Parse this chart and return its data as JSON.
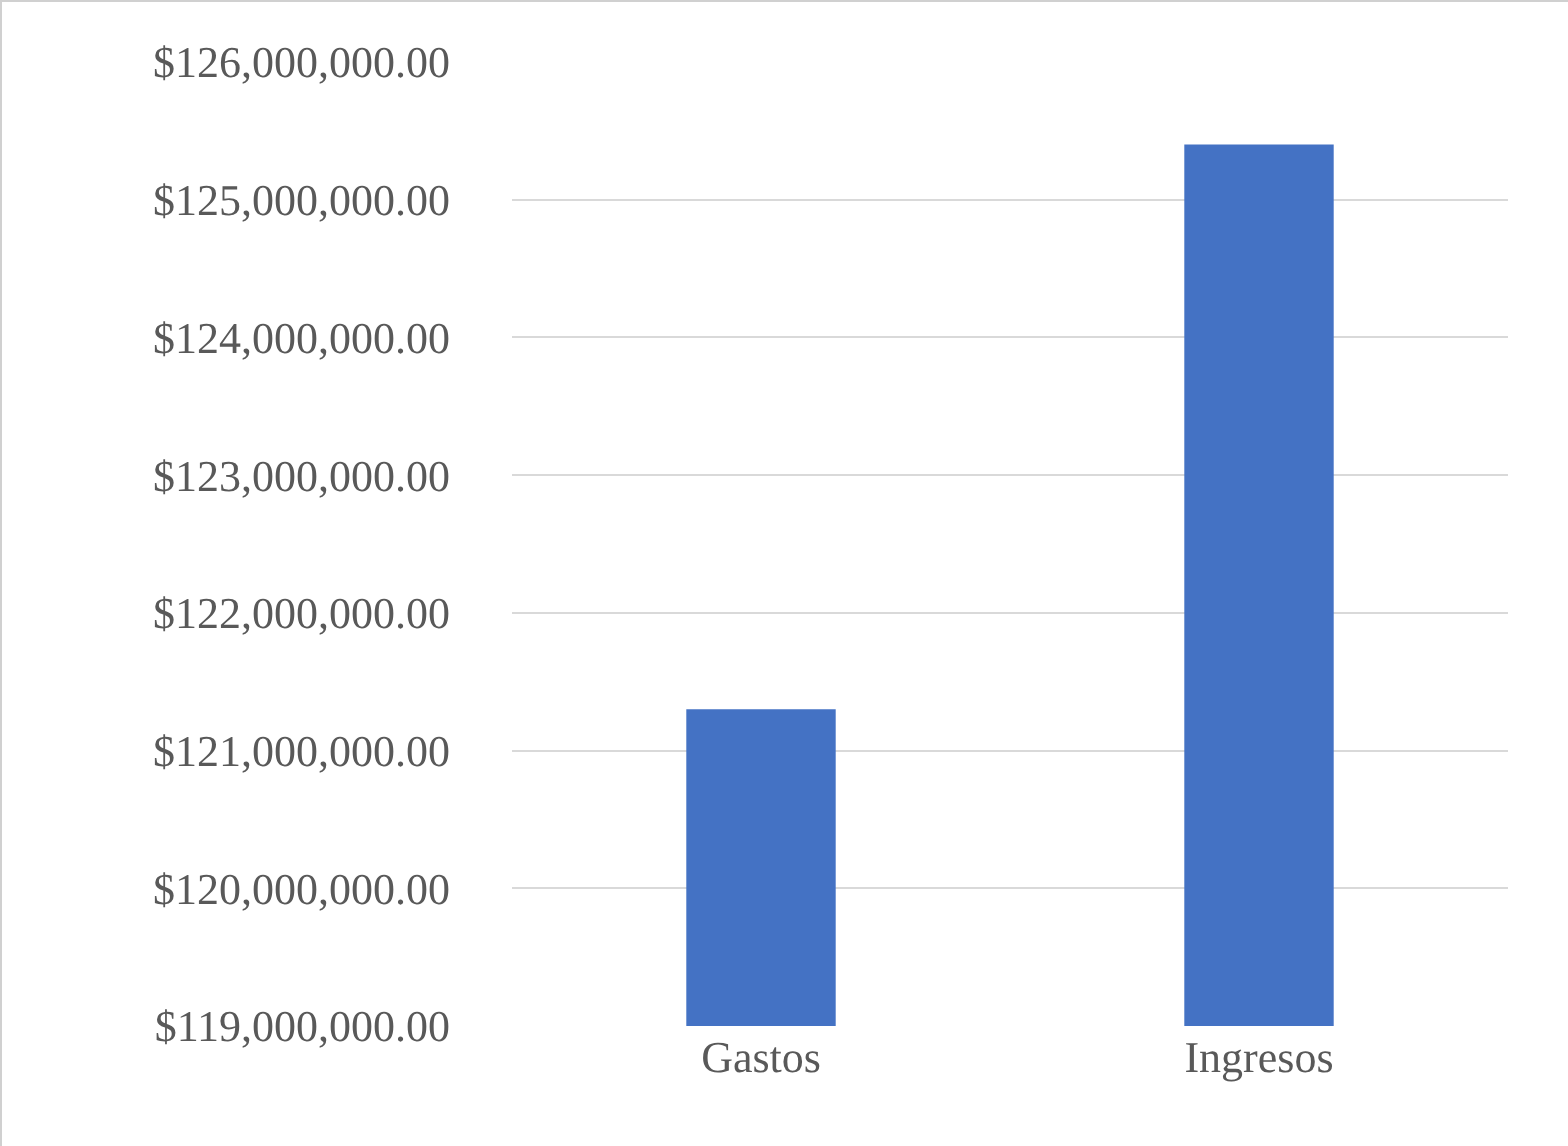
{
  "chart_data": {
    "type": "bar",
    "categories": [
      "Gastos",
      "Ingresos"
    ],
    "values": [
      121300000,
      125400000
    ],
    "color": "#4472c4",
    "ylim": [
      119000000,
      126000000
    ],
    "yticks": [
      {
        "value": 119000000,
        "label": "$119,000,000.00"
      },
      {
        "value": 120000000,
        "label": "$120,000,000.00"
      },
      {
        "value": 121000000,
        "label": "$121,000,000.00"
      },
      {
        "value": 122000000,
        "label": "$122,000,000.00"
      },
      {
        "value": 123000000,
        "label": "$123,000,000.00"
      },
      {
        "value": 124000000,
        "label": "$124,000,000.00"
      },
      {
        "value": 125000000,
        "label": "$125,000,000.00"
      },
      {
        "value": 126000000,
        "label": "$126,000,000.00"
      }
    ],
    "grid": "y"
  }
}
